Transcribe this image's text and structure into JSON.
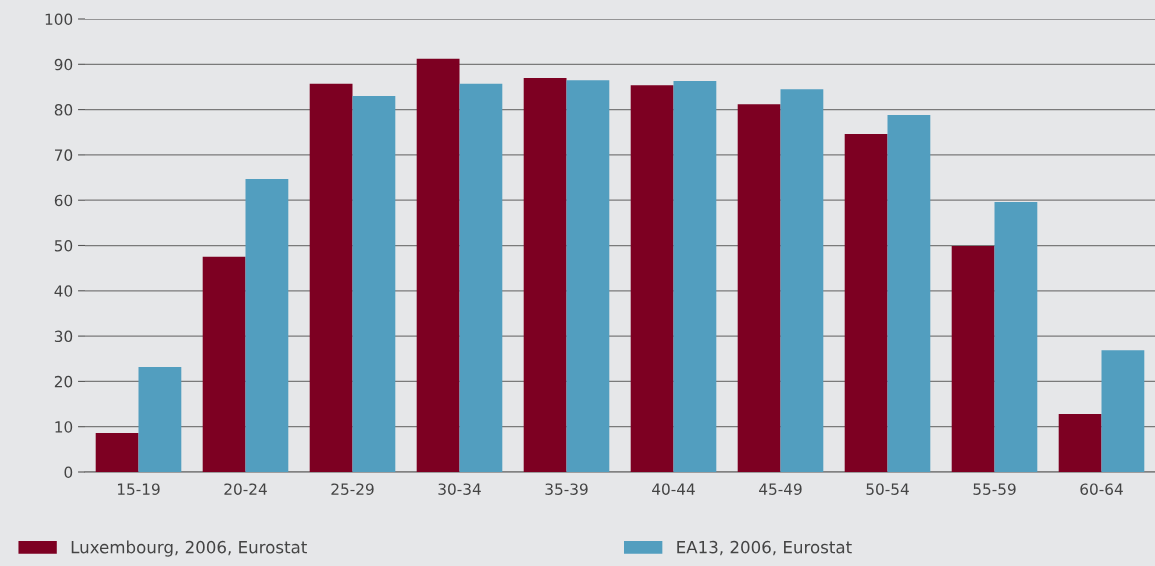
{
  "chart_data": {
    "type": "bar",
    "categories": [
      "15-19",
      "20-24",
      "25-29",
      "30-34",
      "35-39",
      "40-44",
      "45-49",
      "50-54",
      "55-59",
      "60-64"
    ],
    "series": [
      {
        "name": "Luxembourg, 2006, Eurostat",
        "color": "#7d0022",
        "values": [
          8.6,
          47.5,
          85.7,
          91.2,
          87.0,
          85.4,
          81.2,
          74.6,
          49.9,
          12.8
        ]
      },
      {
        "name": "EA13, 2006, Eurostat",
        "color": "#529ebf",
        "values": [
          23.2,
          64.7,
          83.0,
          85.7,
          86.5,
          86.3,
          84.5,
          78.8,
          59.6,
          26.9
        ]
      }
    ],
    "ylim": [
      0,
      100
    ],
    "yticks": [
      0,
      10,
      20,
      30,
      40,
      50,
      60,
      70,
      80,
      90,
      100
    ],
    "grid": "y",
    "legend": "bottom"
  }
}
